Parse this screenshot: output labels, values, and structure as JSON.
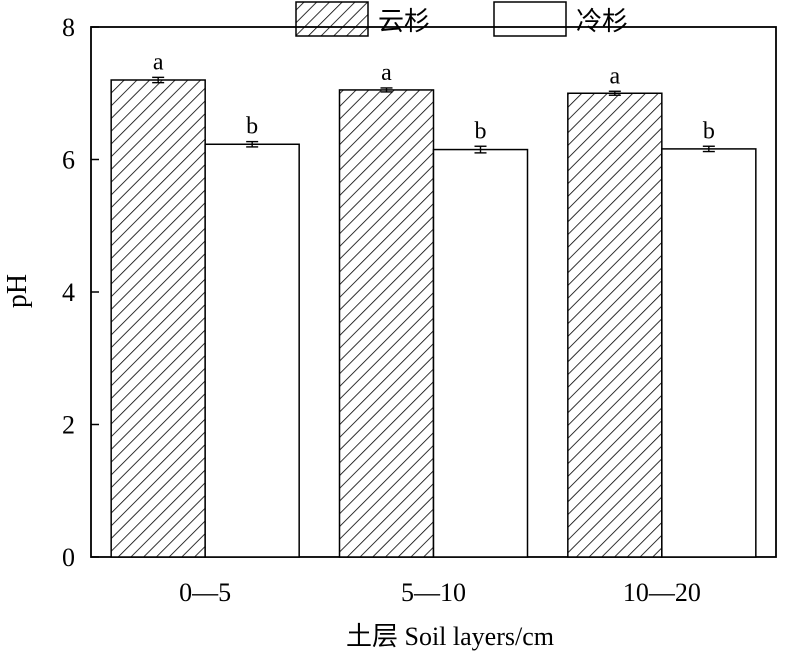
{
  "chart_data": {
    "type": "bar",
    "title": "",
    "xlabel": "土层 Soil layers/cm",
    "ylabel": "pH",
    "ylim": [
      0,
      8
    ],
    "yticks": [
      0,
      2,
      4,
      6,
      8
    ],
    "categories": [
      "0—5",
      "5—10",
      "10—20"
    ],
    "legend_position": "top-center",
    "series": [
      {
        "name": "云杉",
        "fill": "hatched",
        "values": [
          7.2,
          7.05,
          7.0
        ],
        "errors": [
          0.04,
          0.03,
          0.03
        ],
        "labels": [
          "a",
          "a",
          "a"
        ]
      },
      {
        "name": "冷杉",
        "fill": "white",
        "values": [
          6.23,
          6.15,
          6.16
        ],
        "errors": [
          0.04,
          0.05,
          0.04
        ],
        "labels": [
          "b",
          "b",
          "b"
        ]
      }
    ],
    "grid": false
  }
}
